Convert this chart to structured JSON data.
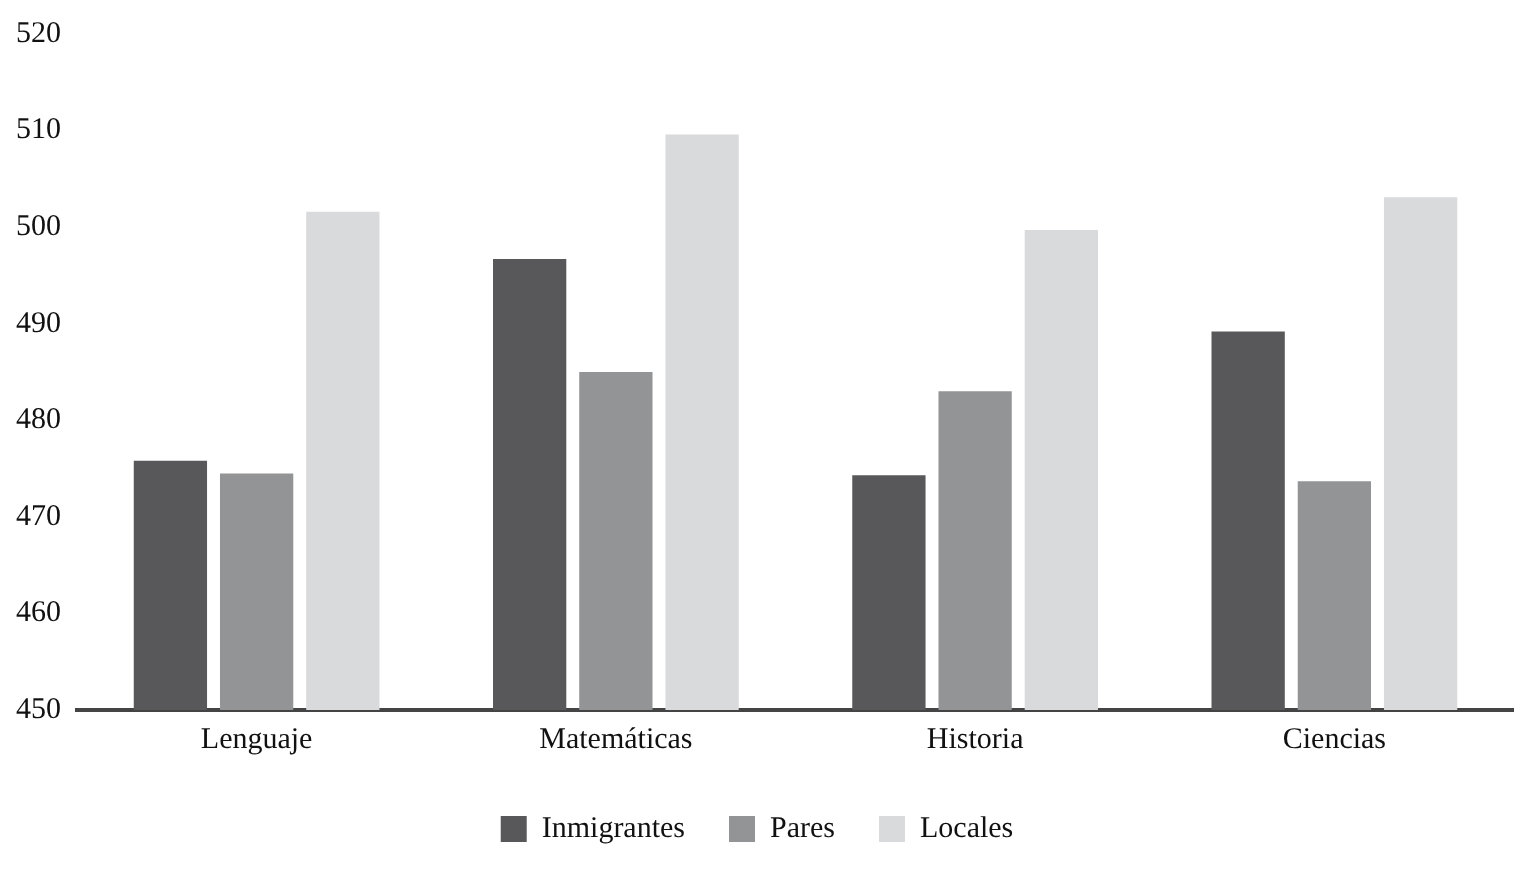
{
  "chart_data": {
    "type": "bar",
    "categories": [
      "Lenguaje",
      "Matemáticas",
      "Historia",
      "Ciencias"
    ],
    "series": [
      {
        "name": "Inmigrantes",
        "color": "#58585a",
        "values": [
          475.8,
          496.7,
          474.3,
          489.2
        ]
      },
      {
        "name": "Pares",
        "color": "#939496",
        "values": [
          474.5,
          485,
          483,
          473.7
        ]
      },
      {
        "name": "Locales",
        "color": "#d9dadc",
        "values": [
          501.6,
          509.6,
          499.7,
          503.1
        ]
      }
    ],
    "ylim": [
      450,
      520
    ],
    "yticks": [
      450,
      460,
      470,
      480,
      490,
      500,
      510,
      520
    ],
    "grid": false,
    "legend": "bottom"
  }
}
